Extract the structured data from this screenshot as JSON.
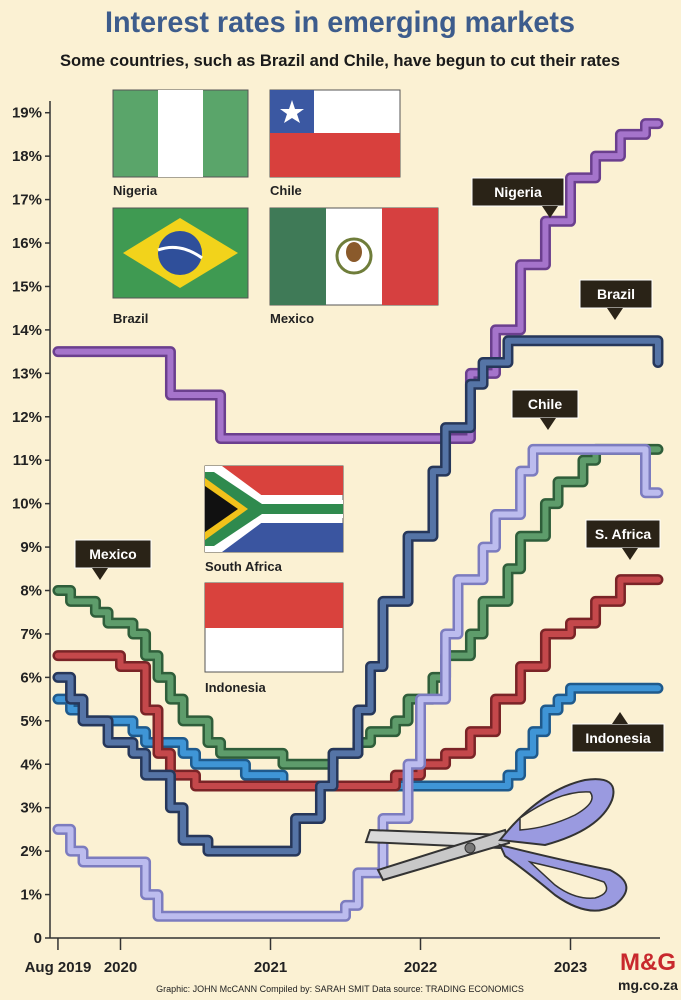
{
  "chart_data": {
    "type": "line",
    "step": true,
    "title": "Interest rates in emerging markets",
    "subtitle": "Some countries, such as Brazil and Chile, have begun to cut their rates",
    "flag_captions": [
      "Nigeria",
      "Chile",
      "Brazil",
      "Mexico",
      "South Africa",
      "Indonesia"
    ],
    "credits": "Graphic: JOHN McCANN  Compiled by: SARAH SMIT  Data source: TRADING ECONOMICS",
    "logo": "M&G",
    "website": "mg.co.za",
    "x": [
      2019.583,
      2019.667,
      2019.75,
      2019.833,
      2019.917,
      2020,
      2020.083,
      2020.167,
      2020.25,
      2020.333,
      2020.417,
      2020.5,
      2020.583,
      2020.667,
      2020.75,
      2020.833,
      2020.917,
      2021,
      2021.083,
      2021.167,
      2021.25,
      2021.333,
      2021.417,
      2021.5,
      2021.583,
      2021.667,
      2021.75,
      2021.833,
      2021.917,
      2022,
      2022.083,
      2022.167,
      2022.25,
      2022.333,
      2022.417,
      2022.5,
      2022.583,
      2022.667,
      2022.75,
      2022.833,
      2022.917,
      2023,
      2023.083,
      2023.167,
      2023.25,
      2023.333,
      2023.417,
      2023.5,
      2023.583
    ],
    "xlim": [
      2019.53,
      2023.73
    ],
    "xticks": [
      {
        "value": 2019.583,
        "label": "Aug 2019"
      },
      2020,
      2021,
      2022,
      2023
    ],
    "ylim": [
      0,
      19.5
    ],
    "yticks": [
      0,
      {
        "value": 1,
        "label": "1%"
      },
      {
        "value": 2,
        "label": "2%"
      },
      {
        "value": 3,
        "label": "3%"
      },
      {
        "value": 4,
        "label": "4%"
      },
      {
        "value": 5,
        "label": "5%"
      },
      {
        "value": 6,
        "label": "6%"
      },
      {
        "value": 7,
        "label": "7%"
      },
      {
        "value": 8,
        "label": "8%"
      },
      {
        "value": 9,
        "label": "9%"
      },
      {
        "value": 10,
        "label": "10%"
      },
      {
        "value": 11,
        "label": "11%"
      },
      {
        "value": 12,
        "label": "12%"
      },
      {
        "value": 13,
        "label": "13%"
      },
      {
        "value": 14,
        "label": "14%"
      },
      {
        "value": 15,
        "label": "15%"
      },
      {
        "value": 16,
        "label": "16%"
      },
      {
        "value": 17,
        "label": "17%"
      },
      {
        "value": 18,
        "label": "18%"
      },
      {
        "value": 19,
        "label": "19%"
      }
    ],
    "grid": false,
    "series": [
      {
        "name": "Indonesia",
        "color": "#3f95d6",
        "edge": "#1f5a8c",
        "values": [
          5.5,
          5.25,
          5,
          5,
          5,
          5,
          4.75,
          4.5,
          4.5,
          4.5,
          4.25,
          4,
          4,
          4,
          4,
          3.75,
          3.75,
          3.75,
          3.5,
          3.5,
          3.5,
          3.5,
          3.5,
          3.5,
          3.5,
          3.5,
          3.5,
          3.5,
          3.5,
          3.5,
          3.5,
          3.5,
          3.5,
          3.5,
          3.5,
          3.5,
          3.75,
          4.25,
          4.75,
          5.25,
          5.5,
          5.75,
          5.75,
          5.75,
          5.75,
          5.75,
          5.75,
          5.75,
          5.75
        ]
      },
      {
        "name": "S. Africa",
        "color": "#c4484b",
        "edge": "#7a2427",
        "values": [
          6.5,
          6.5,
          6.5,
          6.5,
          6.5,
          6.25,
          6.25,
          5.25,
          4.25,
          3.75,
          3.75,
          3.5,
          3.5,
          3.5,
          3.5,
          3.5,
          3.5,
          3.5,
          3.5,
          3.5,
          3.5,
          3.5,
          3.5,
          3.5,
          3.5,
          3.5,
          3.5,
          3.75,
          3.75,
          4,
          4,
          4.25,
          4.25,
          4.75,
          4.75,
          5.5,
          5.5,
          6.25,
          6.25,
          7,
          7,
          7.25,
          7.25,
          7.75,
          7.75,
          8.25,
          8.25,
          8.25,
          8.25
        ]
      },
      {
        "name": "Mexico",
        "color": "#5e9c6b",
        "edge": "#2f5e3a",
        "values": [
          8,
          7.75,
          7.75,
          7.5,
          7.25,
          7.25,
          7,
          6.5,
          6,
          5.5,
          5,
          5,
          4.5,
          4.25,
          4.25,
          4.25,
          4.25,
          4.25,
          4,
          4,
          4,
          4,
          4.25,
          4.25,
          4.5,
          4.75,
          4.75,
          5,
          5.5,
          5.5,
          6,
          6.5,
          6.5,
          7,
          7.75,
          7.75,
          8.5,
          9.25,
          9.25,
          10,
          10.5,
          10.5,
          11,
          11.25,
          11.25,
          11.25,
          11.25,
          11.25,
          11.25
        ]
      },
      {
        "name": "Nigeria",
        "color": "#a574cb",
        "edge": "#6b3f8e",
        "values": [
          13.5,
          13.5,
          13.5,
          13.5,
          13.5,
          13.5,
          13.5,
          13.5,
          13.5,
          12.5,
          12.5,
          12.5,
          12.5,
          11.5,
          11.5,
          11.5,
          11.5,
          11.5,
          11.5,
          11.5,
          11.5,
          11.5,
          11.5,
          11.5,
          11.5,
          11.5,
          11.5,
          11.5,
          11.5,
          11.5,
          11.5,
          11.5,
          11.5,
          13,
          13,
          14,
          14,
          15.5,
          15.5,
          16.5,
          16.5,
          17.5,
          17.5,
          18,
          18,
          18.5,
          18.5,
          18.75,
          18.75
        ]
      },
      {
        "name": "Brazil",
        "color": "#5574a6",
        "edge": "#26375a",
        "values": [
          6,
          5.5,
          5,
          5,
          4.5,
          4.5,
          4.25,
          3.75,
          3.75,
          3,
          2.25,
          2.25,
          2,
          2,
          2,
          2,
          2,
          2,
          2,
          2.75,
          2.75,
          3.5,
          4.25,
          4.25,
          5.25,
          6.25,
          7.75,
          7.75,
          9.25,
          9.25,
          10.75,
          11.75,
          11.75,
          12.75,
          13.25,
          13.25,
          13.75,
          13.75,
          13.75,
          13.75,
          13.75,
          13.75,
          13.75,
          13.75,
          13.75,
          13.75,
          13.75,
          13.75,
          13.25
        ]
      },
      {
        "name": "Chile",
        "color": "#bcbcee",
        "edge": "#7c7cbf",
        "values": [
          2.5,
          2,
          1.75,
          1.75,
          1.75,
          1.75,
          1.75,
          1,
          0.5,
          0.5,
          0.5,
          0.5,
          0.5,
          0.5,
          0.5,
          0.5,
          0.5,
          0.5,
          0.5,
          0.5,
          0.5,
          0.5,
          0.5,
          0.75,
          1.5,
          1.5,
          2.75,
          2.75,
          4,
          5.5,
          5.5,
          7,
          8.25,
          8.25,
          9,
          9.75,
          9.75,
          10.75,
          11.25,
          11.25,
          11.25,
          11.25,
          11.25,
          11.25,
          11.25,
          11.25,
          11.25,
          10.25,
          10.25
        ]
      }
    ]
  }
}
